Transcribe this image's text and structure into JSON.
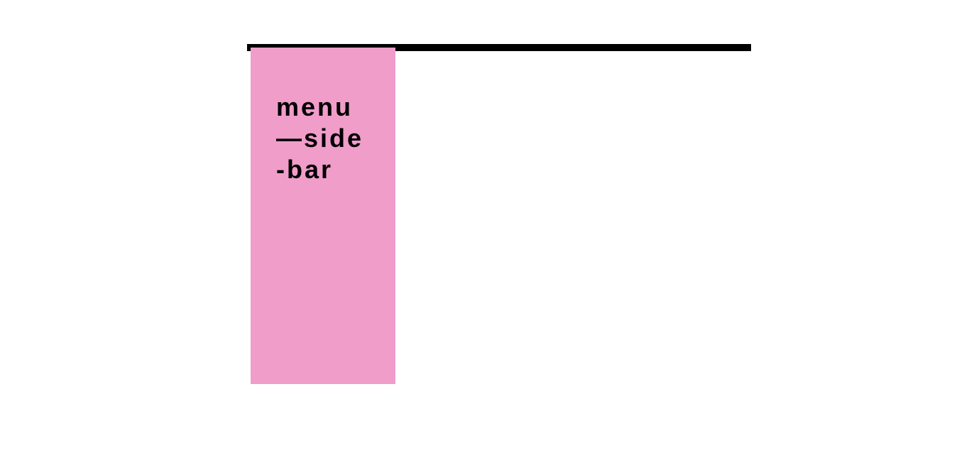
{
  "sidebar": {
    "label_lines": [
      "menu",
      "—side",
      "-bar"
    ]
  },
  "colors": {
    "sidebar_background": "#f09dca",
    "top_rule": "#000000",
    "page_background": "#ffffff"
  }
}
